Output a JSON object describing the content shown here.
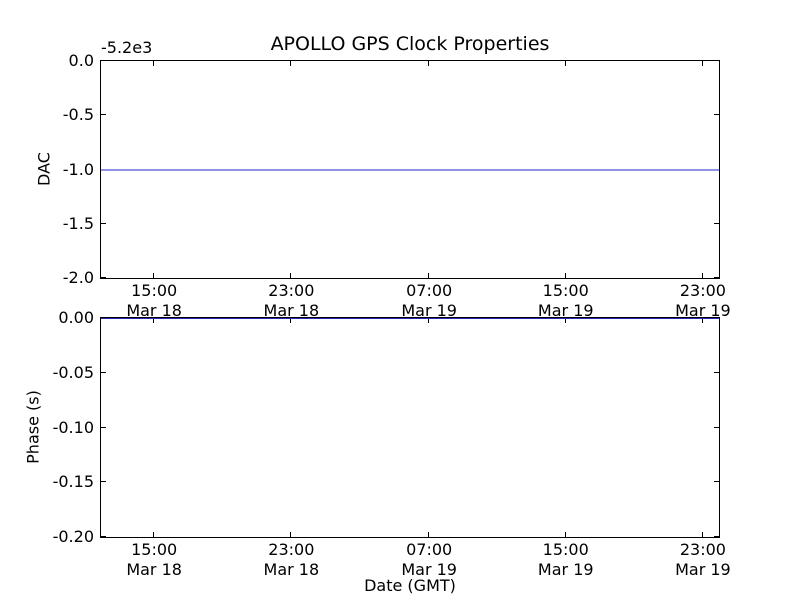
{
  "figure": {
    "background": "#ffffff",
    "axis_color": "#000000",
    "text_color": "#000000"
  },
  "chart_data": [
    {
      "type": "line",
      "title": "APOLLO GPS Clock Properties",
      "ylabel": "DAC",
      "offset_text": "-5.2e3",
      "ylim": [
        -2.0,
        0.0
      ],
      "ytick_values": [
        0.0,
        -0.5,
        -1.0,
        -1.5,
        -2.0
      ],
      "ytick_labels": [
        "0.0",
        "-0.5",
        "-1.0",
        "-1.5",
        "-2.0"
      ],
      "ytick_pos": [
        0,
        0.25,
        0.5,
        0.75,
        1.0
      ],
      "xtick_labels": [
        [
          "15:00",
          "Mar 18"
        ],
        [
          "23:00",
          "Mar 18"
        ],
        [
          "07:00",
          "Mar 19"
        ],
        [
          "15:00",
          "Mar 19"
        ],
        [
          "23:00",
          "Mar 19"
        ]
      ],
      "xtick_pos": [
        0.086,
        0.308,
        0.531,
        0.752,
        0.974
      ],
      "grid": false,
      "legend": null,
      "series": [
        {
          "name": "DAC",
          "shape": "constant-horizontal-line",
          "value": -1.0,
          "value_frac": 0.5,
          "color": "#9191e6"
        }
      ]
    },
    {
      "type": "line",
      "title": "",
      "ylabel": "Phase (s)",
      "xlabel": "Date (GMT)",
      "ylim": [
        -0.2,
        0.0
      ],
      "ytick_values": [
        0.0,
        -0.05,
        -0.1,
        -0.15,
        -0.2
      ],
      "ytick_labels": [
        "0.00",
        "-0.05",
        "-0.10",
        "-0.15",
        "-0.20"
      ],
      "ytick_pos": [
        0,
        0.25,
        0.5,
        0.75,
        1.0
      ],
      "xtick_labels": [
        [
          "15:00",
          "Mar 18"
        ],
        [
          "23:00",
          "Mar 18"
        ],
        [
          "07:00",
          "Mar 19"
        ],
        [
          "15:00",
          "Mar 19"
        ],
        [
          "23:00",
          "Mar 19"
        ]
      ],
      "xtick_pos": [
        0.086,
        0.308,
        0.531,
        0.752,
        0.974
      ],
      "grid": false,
      "legend": null,
      "series": [
        {
          "name": "Phase",
          "shape": "constant-horizontal-line",
          "value": 0.0,
          "value_frac": 0.0,
          "color": "#2626b8"
        }
      ]
    }
  ]
}
